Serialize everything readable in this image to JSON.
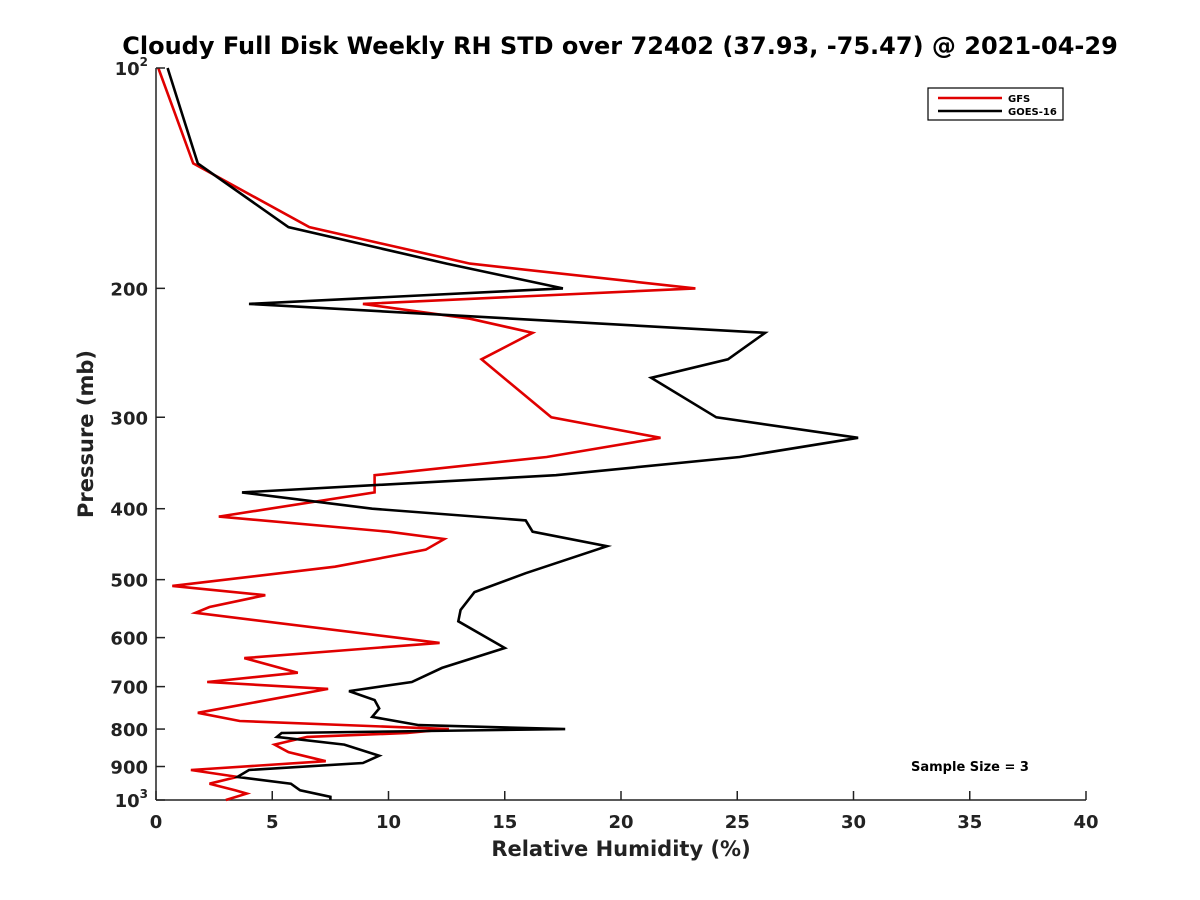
{
  "chart_data": {
    "type": "line",
    "title": "Cloudy Full Disk Weekly RH STD over 72402 (37.93, -75.47) @ 2021-04-29",
    "xlabel": "Relative Humidity (%)",
    "ylabel": "Pressure (mb)",
    "xlim": [
      0,
      40
    ],
    "ylim": [
      100,
      1000
    ],
    "y_scale": "log",
    "y_reversed": true,
    "grid": false,
    "legend_position": "top-right",
    "x_ticks": [
      0,
      5,
      10,
      15,
      20,
      25,
      30,
      35,
      40
    ],
    "x_tick_labels": [
      "0",
      "5",
      "10",
      "15",
      "20",
      "25",
      "30",
      "35",
      "40"
    ],
    "y_ticks": [
      100,
      200,
      300,
      400,
      500,
      600,
      700,
      800,
      900,
      1000
    ],
    "y_tick_labels": [
      {
        "base": "10",
        "sup": "2"
      },
      {
        "base": "200"
      },
      {
        "base": "300"
      },
      {
        "base": "400"
      },
      {
        "base": "500"
      },
      {
        "base": "600"
      },
      {
        "base": "700"
      },
      {
        "base": "800"
      },
      {
        "base": "900"
      },
      {
        "base": "10",
        "sup": "3"
      }
    ],
    "annotation": "Sample Size = 3",
    "series": [
      {
        "name": "GFS",
        "color": "#e00000",
        "points": [
          [
            0.1,
            100
          ],
          [
            0.8,
            115
          ],
          [
            1.6,
            135
          ],
          [
            6.6,
            165
          ],
          [
            13.5,
            185
          ],
          [
            23.2,
            200
          ],
          [
            8.9,
            210
          ],
          [
            13.5,
            220
          ],
          [
            16.2,
            230
          ],
          [
            14.0,
            250
          ],
          [
            17.0,
            300
          ],
          [
            21.7,
            320
          ],
          [
            16.8,
            340
          ],
          [
            9.4,
            360
          ],
          [
            9.4,
            380
          ],
          [
            2.7,
            410
          ],
          [
            10.0,
            430
          ],
          [
            12.4,
            440
          ],
          [
            11.6,
            455
          ],
          [
            7.7,
            480
          ],
          [
            0.7,
            510
          ],
          [
            4.7,
            525
          ],
          [
            2.3,
            545
          ],
          [
            1.7,
            555
          ],
          [
            12.2,
            610
          ],
          [
            3.8,
            640
          ],
          [
            6.1,
            670
          ],
          [
            2.2,
            690
          ],
          [
            7.4,
            705
          ],
          [
            1.8,
            760
          ],
          [
            3.6,
            780
          ],
          [
            12.6,
            800
          ],
          [
            10.8,
            810
          ],
          [
            6.5,
            820
          ],
          [
            5.1,
            840
          ],
          [
            5.7,
            860
          ],
          [
            7.3,
            885
          ],
          [
            1.5,
            910
          ],
          [
            3.5,
            930
          ],
          [
            2.3,
            950
          ],
          [
            3.4,
            970
          ],
          [
            3.9,
            980
          ],
          [
            3.0,
            1000
          ]
        ]
      },
      {
        "name": "GOES-16",
        "color": "#000000",
        "points": [
          [
            0.5,
            100
          ],
          [
            1.1,
            115
          ],
          [
            1.8,
            135
          ],
          [
            5.7,
            165
          ],
          [
            12.5,
            185
          ],
          [
            17.5,
            200
          ],
          [
            4.0,
            210
          ],
          [
            26.2,
            230
          ],
          [
            24.6,
            250
          ],
          [
            21.3,
            265
          ],
          [
            24.1,
            300
          ],
          [
            30.2,
            320
          ],
          [
            25.1,
            340
          ],
          [
            17.2,
            360
          ],
          [
            3.7,
            380
          ],
          [
            9.3,
            400
          ],
          [
            15.9,
            415
          ],
          [
            16.2,
            430
          ],
          [
            19.4,
            450
          ],
          [
            15.9,
            490
          ],
          [
            13.7,
            520
          ],
          [
            13.1,
            550
          ],
          [
            13.0,
            570
          ],
          [
            15.0,
            620
          ],
          [
            12.3,
            660
          ],
          [
            11.0,
            690
          ],
          [
            8.3,
            710
          ],
          [
            9.4,
            730
          ],
          [
            9.6,
            750
          ],
          [
            9.3,
            770
          ],
          [
            11.3,
            790
          ],
          [
            17.6,
            800
          ],
          [
            5.4,
            810
          ],
          [
            5.2,
            820
          ],
          [
            8.1,
            840
          ],
          [
            9.6,
            870
          ],
          [
            8.9,
            890
          ],
          [
            4.0,
            910
          ],
          [
            3.5,
            930
          ],
          [
            5.8,
            950
          ],
          [
            6.2,
            970
          ],
          [
            7.5,
            990
          ],
          [
            7.5,
            1000
          ]
        ]
      }
    ]
  }
}
